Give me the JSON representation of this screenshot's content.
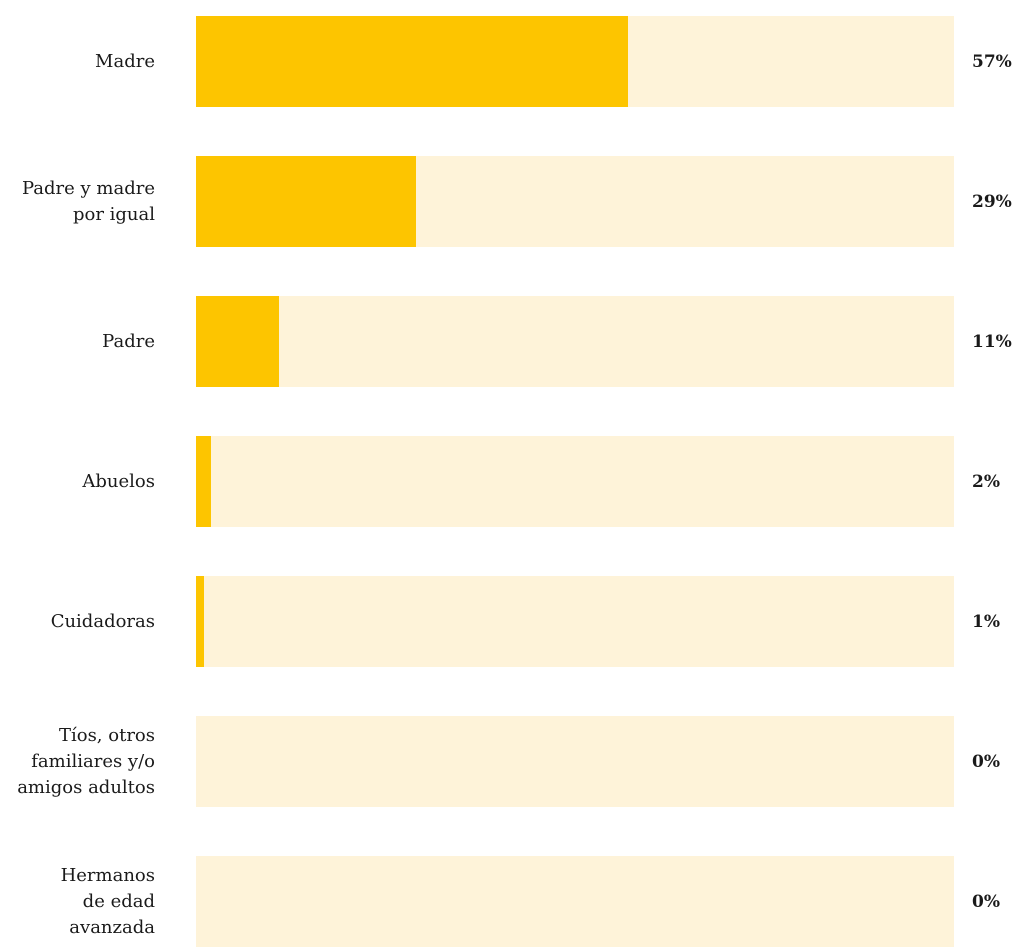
{
  "colors": {
    "fill": "#FDC500",
    "track": "#FEF3D9"
  },
  "chart_data": {
    "type": "bar",
    "orientation": "horizontal",
    "categories": [
      "Madre",
      "Padre y madre\npor igual",
      "Padre",
      "Abuelos",
      "Cuidadoras",
      "Tíos, otros\nfamiliares y/o\namigos adultos",
      "Hermanos\nde edad\navanzada"
    ],
    "values": [
      57,
      29,
      11,
      2,
      1,
      0,
      0
    ],
    "value_labels": [
      "57%",
      "29%",
      "11%",
      "2%",
      "1%",
      "0%",
      "0%"
    ],
    "xlim": [
      0,
      100
    ],
    "grid": false,
    "legend": "none"
  }
}
